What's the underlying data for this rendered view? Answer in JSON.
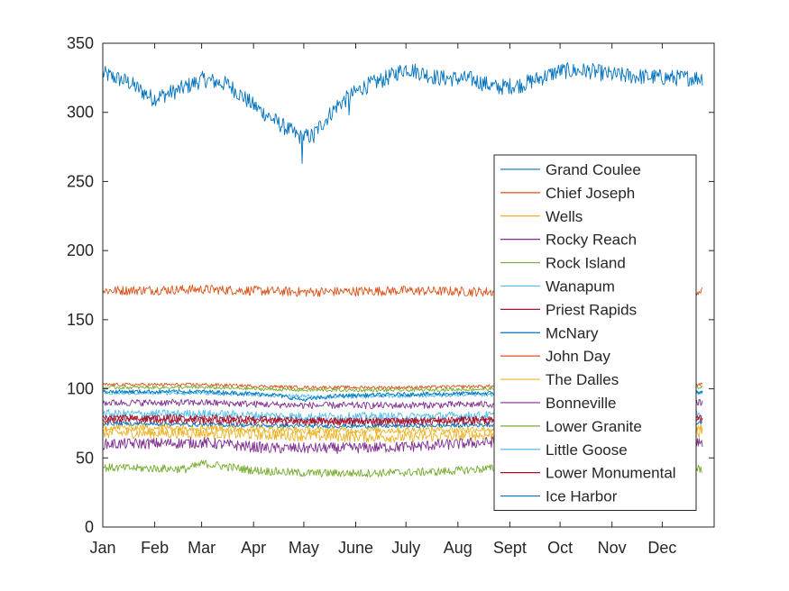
{
  "chart_data": {
    "type": "line",
    "title": "",
    "xlabel": "",
    "ylabel": "",
    "xlim": [
      0,
      365
    ],
    "ylim": [
      0,
      350
    ],
    "grid": false,
    "legend_position": "right, inside axes",
    "x_ticks": [
      {
        "label": "Jan",
        "day": 0
      },
      {
        "label": "Feb",
        "day": 31
      },
      {
        "label": "Mar",
        "day": 59
      },
      {
        "label": "Apr",
        "day": 90
      },
      {
        "label": "May",
        "day": 120
      },
      {
        "label": "June",
        "day": 151
      },
      {
        "label": "July",
        "day": 181
      },
      {
        "label": "Aug",
        "day": 212
      },
      {
        "label": "Sept",
        "day": 243
      },
      {
        "label": "Oct",
        "day": 273
      },
      {
        "label": "Nov",
        "day": 304
      },
      {
        "label": "Dec",
        "day": 334
      }
    ],
    "y_ticks": [
      0,
      50,
      100,
      150,
      200,
      250,
      300,
      350
    ],
    "series": [
      {
        "name": "Grand Coulee",
        "color": "#0072BD",
        "noise": 6,
        "profile": [
          [
            0,
            328
          ],
          [
            15,
            322
          ],
          [
            30,
            310
          ],
          [
            45,
            316
          ],
          [
            60,
            324
          ],
          [
            75,
            320
          ],
          [
            90,
            305
          ],
          [
            105,
            292
          ],
          [
            118,
            282
          ],
          [
            125,
            283
          ],
          [
            140,
            305
          ],
          [
            155,
            318
          ],
          [
            170,
            325
          ],
          [
            181,
            332
          ],
          [
            200,
            325
          ],
          [
            220,
            324
          ],
          [
            235,
            318
          ],
          [
            250,
            320
          ],
          [
            273,
            330
          ],
          [
            290,
            330
          ],
          [
            305,
            327
          ],
          [
            320,
            326
          ],
          [
            340,
            325
          ],
          [
            358,
            325
          ]
        ],
        "spikes": [
          [
            119,
            263
          ],
          [
            126,
            278
          ],
          [
            147,
            298
          ]
        ]
      },
      {
        "name": "Chief Joseph",
        "color": "#D95319",
        "noise": 3.5,
        "profile": [
          [
            0,
            171
          ],
          [
            60,
            172
          ],
          [
            120,
            170
          ],
          [
            180,
            171
          ],
          [
            240,
            170
          ],
          [
            300,
            171
          ],
          [
            358,
            171
          ]
        ]
      },
      {
        "name": "Wells",
        "color": "#EDB120",
        "noise": 4,
        "profile": [
          [
            0,
            68
          ],
          [
            60,
            68
          ],
          [
            120,
            66
          ],
          [
            180,
            65
          ],
          [
            240,
            67
          ],
          [
            300,
            68
          ],
          [
            358,
            68
          ]
        ]
      },
      {
        "name": "Rocky Reach",
        "color": "#7E2F8E",
        "noise": 4,
        "profile": [
          [
            0,
            60
          ],
          [
            60,
            61
          ],
          [
            100,
            57
          ],
          [
            140,
            57
          ],
          [
            180,
            58
          ],
          [
            240,
            62
          ],
          [
            300,
            62
          ],
          [
            358,
            62
          ]
        ]
      },
      {
        "name": "Rock Island",
        "color": "#77AC30",
        "noise": 3,
        "profile": [
          [
            0,
            43
          ],
          [
            50,
            42
          ],
          [
            60,
            46
          ],
          [
            90,
            41
          ],
          [
            120,
            39
          ],
          [
            160,
            39
          ],
          [
            200,
            40
          ],
          [
            240,
            43
          ],
          [
            300,
            44
          ],
          [
            358,
            42
          ]
        ]
      },
      {
        "name": "Wanapum",
        "color": "#4DBEEE",
        "noise": 3,
        "profile": [
          [
            0,
            82
          ],
          [
            60,
            82
          ],
          [
            120,
            80
          ],
          [
            180,
            80
          ],
          [
            240,
            81
          ],
          [
            300,
            82
          ],
          [
            358,
            82
          ]
        ]
      },
      {
        "name": "Priest Rapids",
        "color": "#A2142F",
        "noise": 3,
        "profile": [
          [
            0,
            78
          ],
          [
            60,
            77
          ],
          [
            120,
            76
          ],
          [
            180,
            76
          ],
          [
            240,
            77
          ],
          [
            300,
            78
          ],
          [
            358,
            78
          ]
        ]
      },
      {
        "name": "McNary",
        "color": "#0072BD",
        "noise": 1.5,
        "profile": [
          [
            0,
            75
          ],
          [
            60,
            74
          ],
          [
            120,
            73
          ],
          [
            180,
            73
          ],
          [
            240,
            74
          ],
          [
            300,
            75
          ],
          [
            358,
            75
          ]
        ]
      },
      {
        "name": "John Day",
        "color": "#D95319",
        "noise": 1.2,
        "profile": [
          [
            0,
            103
          ],
          [
            60,
            103
          ],
          [
            120,
            101
          ],
          [
            180,
            101
          ],
          [
            240,
            102
          ],
          [
            300,
            103
          ],
          [
            358,
            103
          ]
        ]
      },
      {
        "name": "The Dalles",
        "color": "#EDB120",
        "noise": 2.5,
        "profile": [
          [
            0,
            72
          ],
          [
            60,
            72
          ],
          [
            120,
            70
          ],
          [
            180,
            70
          ],
          [
            240,
            71
          ],
          [
            300,
            72
          ],
          [
            358,
            72
          ]
        ]
      },
      {
        "name": "Bonneville",
        "color": "#7E2F8E",
        "noise": 2.5,
        "profile": [
          [
            0,
            90
          ],
          [
            60,
            90
          ],
          [
            120,
            88
          ],
          [
            180,
            88
          ],
          [
            240,
            89
          ],
          [
            300,
            90
          ],
          [
            358,
            90
          ]
        ]
      },
      {
        "name": "Lower Granite",
        "color": "#77AC30",
        "noise": 1.2,
        "profile": [
          [
            0,
            101
          ],
          [
            60,
            101
          ],
          [
            120,
            99
          ],
          [
            180,
            99
          ],
          [
            240,
            100
          ],
          [
            300,
            101
          ],
          [
            358,
            101
          ]
        ]
      },
      {
        "name": "Little Goose",
        "color": "#4DBEEE",
        "noise": 1.5,
        "profile": [
          [
            0,
            97
          ],
          [
            60,
            97
          ],
          [
            110,
            95
          ],
          [
            130,
            94
          ],
          [
            180,
            95
          ],
          [
            240,
            96
          ],
          [
            300,
            97
          ],
          [
            358,
            97
          ]
        ]
      },
      {
        "name": "Lower Monumental",
        "color": "#A2142F",
        "noise": 2.5,
        "profile": [
          [
            0,
            79
          ],
          [
            60,
            79
          ],
          [
            120,
            77
          ],
          [
            180,
            77
          ],
          [
            240,
            78
          ],
          [
            300,
            79
          ],
          [
            358,
            79
          ]
        ]
      },
      {
        "name": "Ice Harbor",
        "color": "#0072BD",
        "noise": 1.5,
        "profile": [
          [
            0,
            98
          ],
          [
            60,
            98
          ],
          [
            100,
            96
          ],
          [
            120,
            92
          ],
          [
            140,
            95
          ],
          [
            180,
            96
          ],
          [
            240,
            97
          ],
          [
            300,
            98
          ],
          [
            358,
            98
          ]
        ]
      }
    ]
  }
}
